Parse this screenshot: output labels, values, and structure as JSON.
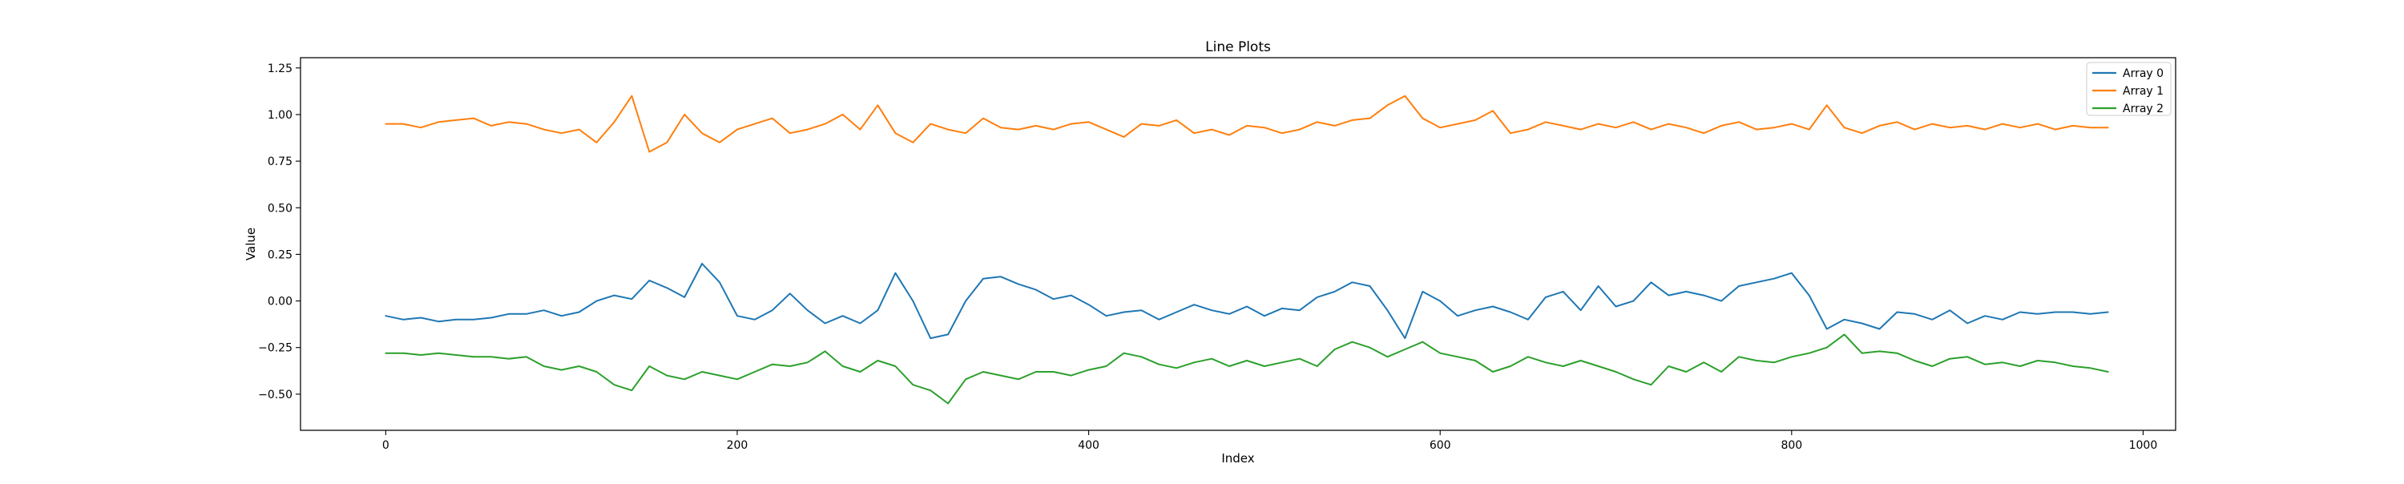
{
  "chart_data": {
    "type": "line",
    "title": "Line Plots",
    "xlabel": "Index",
    "ylabel": "Value",
    "xlim": [
      -48.5,
      1018.5
    ],
    "ylim": [
      -0.694,
      1.305
    ],
    "x_ticks": [
      0,
      200,
      400,
      600,
      800,
      1000
    ],
    "x_tick_labels": [
      "0",
      "200",
      "400",
      "600",
      "800",
      "1000"
    ],
    "y_ticks": [
      -0.5,
      -0.25,
      0.0,
      0.25,
      0.5,
      0.75,
      1.0,
      1.25
    ],
    "y_tick_labels": [
      "−0.50",
      "−0.25",
      "0.00",
      "0.25",
      "0.50",
      "0.75",
      "1.00",
      "1.25"
    ],
    "grid": false,
    "legend_position": "top-right",
    "series": [
      {
        "name": "Array 0",
        "color": "#1f77b4",
        "x_start": 0,
        "x_step": 10,
        "values": [
          -0.08,
          -0.1,
          -0.09,
          -0.11,
          -0.1,
          -0.1,
          -0.09,
          -0.07,
          -0.07,
          -0.05,
          -0.08,
          -0.06,
          0.0,
          0.03,
          0.01,
          0.11,
          0.07,
          0.02,
          0.2,
          0.1,
          -0.08,
          -0.1,
          -0.05,
          0.04,
          -0.05,
          -0.12,
          -0.08,
          -0.12,
          -0.05,
          0.15,
          0.0,
          -0.2,
          -0.18,
          0.0,
          0.12,
          0.13,
          0.09,
          0.06,
          0.01,
          0.03,
          -0.02,
          -0.08,
          -0.06,
          -0.05,
          -0.1,
          -0.06,
          -0.02,
          -0.05,
          -0.07,
          -0.03,
          -0.08,
          -0.04,
          -0.05,
          0.02,
          0.05,
          0.1,
          0.08,
          -0.05,
          -0.2,
          0.05,
          0.0,
          -0.08,
          -0.05,
          -0.03,
          -0.06,
          -0.1,
          0.02,
          0.05,
          -0.05,
          0.08,
          -0.03,
          0.0,
          0.1,
          0.03,
          0.05,
          0.03,
          0.0,
          0.08,
          0.1,
          0.12,
          0.15,
          0.03,
          -0.15,
          -0.1,
          -0.12,
          -0.15,
          -0.06,
          -0.07,
          -0.1,
          -0.05,
          -0.12,
          -0.08,
          -0.1,
          -0.06,
          -0.07,
          -0.06,
          -0.06,
          -0.07,
          -0.06
        ]
      },
      {
        "name": "Array 1",
        "color": "#ff7f0e",
        "x_start": 0,
        "x_step": 10,
        "values": [
          0.95,
          0.95,
          0.93,
          0.96,
          0.97,
          0.98,
          0.94,
          0.96,
          0.95,
          0.92,
          0.9,
          0.92,
          0.85,
          0.96,
          1.1,
          0.8,
          0.85,
          1.0,
          0.9,
          0.85,
          0.92,
          0.95,
          0.98,
          0.9,
          0.92,
          0.95,
          1.0,
          0.92,
          1.05,
          0.9,
          0.85,
          0.95,
          0.92,
          0.9,
          0.98,
          0.93,
          0.92,
          0.94,
          0.92,
          0.95,
          0.96,
          0.92,
          0.88,
          0.95,
          0.94,
          0.97,
          0.9,
          0.92,
          0.89,
          0.94,
          0.93,
          0.9,
          0.92,
          0.96,
          0.94,
          0.97,
          0.98,
          1.05,
          1.1,
          0.98,
          0.93,
          0.95,
          0.97,
          1.02,
          0.9,
          0.92,
          0.96,
          0.94,
          0.92,
          0.95,
          0.93,
          0.96,
          0.92,
          0.95,
          0.93,
          0.9,
          0.94,
          0.96,
          0.92,
          0.93,
          0.95,
          0.92,
          1.05,
          0.93,
          0.9,
          0.94,
          0.96,
          0.92,
          0.95,
          0.93,
          0.94,
          0.92,
          0.95,
          0.93,
          0.95,
          0.92,
          0.94,
          0.93,
          0.93
        ]
      },
      {
        "name": "Array 2",
        "color": "#2ca02c",
        "x_start": 0,
        "x_step": 10,
        "values": [
          -0.28,
          -0.28,
          -0.29,
          -0.28,
          -0.29,
          -0.3,
          -0.3,
          -0.31,
          -0.3,
          -0.35,
          -0.37,
          -0.35,
          -0.38,
          -0.45,
          -0.48,
          -0.35,
          -0.4,
          -0.42,
          -0.38,
          -0.4,
          -0.42,
          -0.38,
          -0.34,
          -0.35,
          -0.33,
          -0.27,
          -0.35,
          -0.38,
          -0.32,
          -0.35,
          -0.45,
          -0.48,
          -0.55,
          -0.42,
          -0.38,
          -0.4,
          -0.42,
          -0.38,
          -0.38,
          -0.4,
          -0.37,
          -0.35,
          -0.28,
          -0.3,
          -0.34,
          -0.36,
          -0.33,
          -0.31,
          -0.35,
          -0.32,
          -0.35,
          -0.33,
          -0.31,
          -0.35,
          -0.26,
          -0.22,
          -0.25,
          -0.3,
          -0.26,
          -0.22,
          -0.28,
          -0.3,
          -0.32,
          -0.38,
          -0.35,
          -0.3,
          -0.33,
          -0.35,
          -0.32,
          -0.35,
          -0.38,
          -0.42,
          -0.45,
          -0.35,
          -0.38,
          -0.33,
          -0.38,
          -0.3,
          -0.32,
          -0.33,
          -0.3,
          -0.28,
          -0.25,
          -0.18,
          -0.28,
          -0.27,
          -0.28,
          -0.32,
          -0.35,
          -0.31,
          -0.3,
          -0.34,
          -0.33,
          -0.35,
          -0.32,
          -0.33,
          -0.35,
          -0.36,
          -0.38
        ]
      }
    ]
  }
}
